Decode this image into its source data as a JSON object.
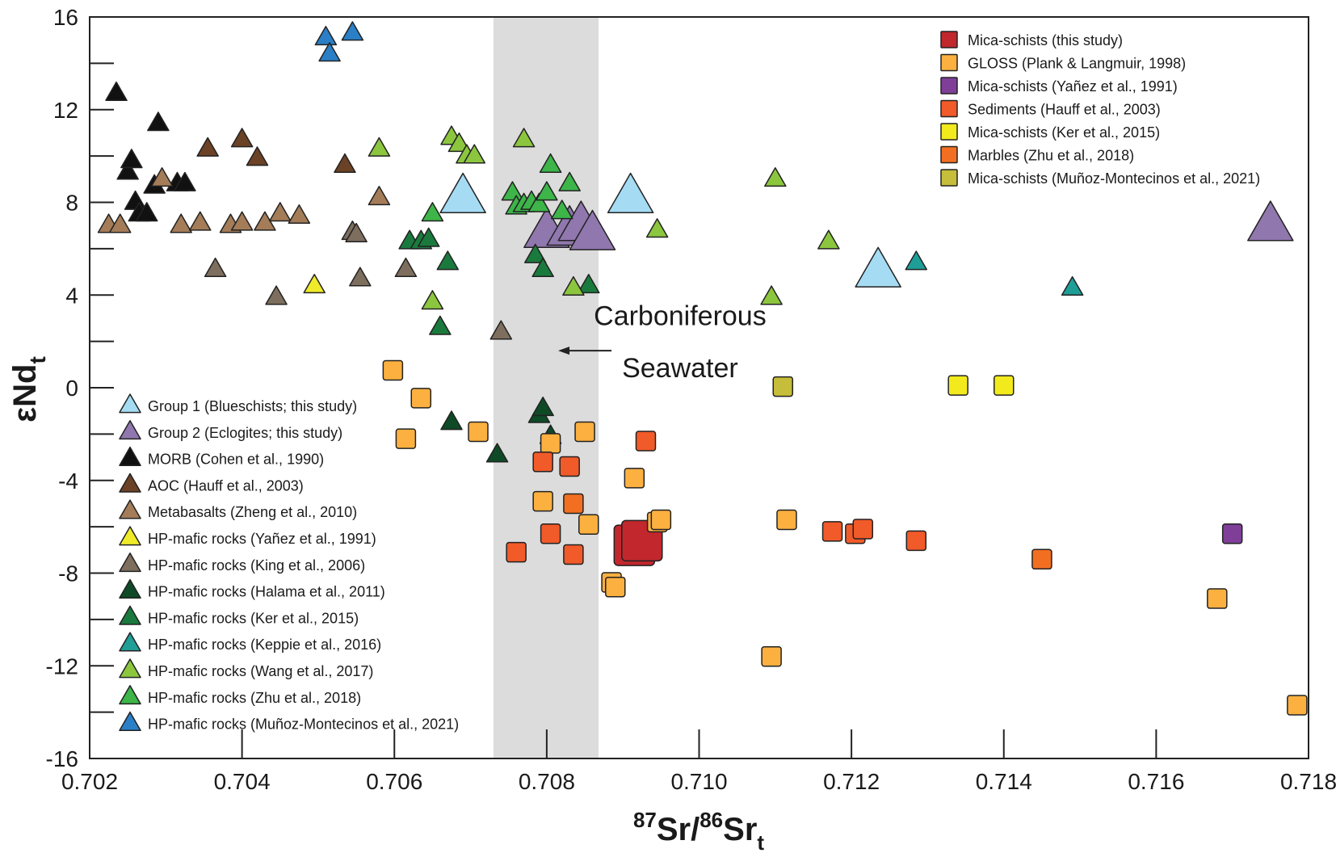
{
  "chart_data": {
    "type": "scatter",
    "xlim": [
      0.702,
      0.718
    ],
    "ylim": [
      -16,
      16
    ],
    "xticks": [
      0.702,
      0.704,
      0.706,
      0.708,
      0.71,
      0.712,
      0.714,
      0.716,
      0.718
    ],
    "xtick_labels": [
      "0.702",
      "0.704",
      "0.706",
      "0.708",
      "0.710",
      "0.712",
      "0.714",
      "0.716",
      "0.718"
    ],
    "yticks": [
      -16,
      -12,
      -8,
      -4,
      0,
      4,
      8,
      12,
      16
    ],
    "ytick_labels": [
      "-16",
      "-12",
      "-8",
      "-4",
      "0",
      "4",
      "8",
      "12",
      "16"
    ],
    "xlabel": {
      "sup1": "87",
      "base1": "Sr/",
      "sup2": "86",
      "base2": "Sr",
      "sub": "t"
    },
    "ylabel": {
      "base": "εNd",
      "sub": "t"
    },
    "band": {
      "x0": 0.7073,
      "x1": 0.70868,
      "label": "Carboniferous Seawater",
      "label_line1": "Carboniferous",
      "label_line2": "Seawater"
    },
    "legend_triangles": [
      {
        "label": "Group 1 (Blueschists; this study)",
        "color": "#a5dcf4"
      },
      {
        "label": "Group 2 (Eclogites; this study)",
        "color": "#9077ae"
      },
      {
        "label": "MORB (Cohen et al., 1990)",
        "color": "#111111"
      },
      {
        "label": "AOC (Hauff et al., 2003)",
        "color": "#6b4226"
      },
      {
        "label": "Metabasalts (Zheng et al., 2010)",
        "color": "#a47c58"
      },
      {
        "label": "HP-mafic rocks (Yañez et al., 1991)",
        "color": "#efea2a"
      },
      {
        "label": "HP-mafic rocks (King et al., 2006)",
        "color": "#7d6e5e"
      },
      {
        "label": "HP-mafic rocks (Halama et al., 2011)",
        "color": "#0e4a26"
      },
      {
        "label": "HP-mafic rocks (Ker et al., 2015)",
        "color": "#1a7a3d"
      },
      {
        "label": "HP-mafic rocks (Keppie et al., 2016)",
        "color": "#1e9e96"
      },
      {
        "label": "HP-mafic rocks (Wang et al., 2017)",
        "color": "#8cc63f"
      },
      {
        "label": "HP-mafic rocks (Zhu et al., 2018)",
        "color": "#3db549"
      },
      {
        "label": "HP-mafic rocks (Muñoz-Montecinos et al., 2021)",
        "color": "#2a7fc6"
      }
    ],
    "legend_squares": [
      {
        "label": "Mica-schists (this study)",
        "color": "#c1272d"
      },
      {
        "label": "GLOSS (Plank & Langmuir, 1998)",
        "color": "#fbb040"
      },
      {
        "label": "Mica-schists (Yañez et al., 1991)",
        "color": "#7f3f98"
      },
      {
        "label": "Sediments (Hauff et al., 2003)",
        "color": "#f15a29"
      },
      {
        "label": "Mica-schists (Ker et al., 2015)",
        "color": "#f2ea1d"
      },
      {
        "label": "Marbles (Zhu et al., 2018)",
        "color": "#f26f21"
      },
      {
        "label": "Mica-schists (Muñoz-Montecinos et al., 2021)",
        "color": "#c6bd3a"
      }
    ],
    "series": [
      {
        "name": "Group 1 (Blueschists; this study)",
        "marker": "triangle",
        "size": "large",
        "color": "#a5dcf4",
        "x": [
          0.7069,
          0.7091,
          0.71235
        ],
        "y": [
          8.2,
          8.2,
          5.0
        ]
      },
      {
        "name": "Group 2 (Eclogites; this study)",
        "marker": "triangle",
        "size": "large",
        "color": "#9077ae",
        "x": [
          0.708,
          0.7083,
          0.70845,
          0.7086,
          0.7175
        ],
        "y": [
          6.7,
          6.8,
          7.0,
          6.6,
          7.0
        ]
      },
      {
        "name": "MORB (Cohen et al., 1990)",
        "marker": "triangle",
        "size": "small",
        "color": "#111111",
        "x": [
          0.70235,
          0.7025,
          0.70255,
          0.7026,
          0.70265,
          0.70275,
          0.70285,
          0.7029,
          0.70315,
          0.70325
        ],
        "y": [
          12.7,
          9.3,
          9.8,
          8.0,
          7.5,
          7.5,
          8.7,
          11.4,
          8.8,
          8.8
        ]
      },
      {
        "name": "AOC (Hauff et al., 2003)",
        "marker": "triangle",
        "size": "small",
        "color": "#6b4226",
        "x": [
          0.70355,
          0.704,
          0.7042,
          0.70535
        ],
        "y": [
          10.3,
          10.7,
          9.9,
          9.6
        ]
      },
      {
        "name": "Metabasalts (Zheng et al., 2010)",
        "marker": "triangle",
        "size": "small",
        "color": "#a47c58",
        "x": [
          0.70225,
          0.7024,
          0.70295,
          0.7032,
          0.70345,
          0.70385,
          0.704,
          0.7043,
          0.7045,
          0.70475,
          0.7058
        ],
        "y": [
          7.0,
          7.0,
          9.0,
          7.0,
          7.1,
          7.0,
          7.1,
          7.1,
          7.5,
          7.4,
          8.2
        ]
      },
      {
        "name": "HP-mafic rocks (Yañez et al., 1991)",
        "marker": "triangle",
        "size": "small",
        "color": "#efea2a",
        "x": [
          0.70495
        ],
        "y": [
          4.4
        ]
      },
      {
        "name": "HP-mafic rocks (King et al., 2006)",
        "marker": "triangle",
        "size": "small",
        "color": "#7d6e5e",
        "x": [
          0.70365,
          0.70445,
          0.70545,
          0.7055,
          0.70555,
          0.70615,
          0.7074
        ],
        "y": [
          5.1,
          3.9,
          6.7,
          6.6,
          4.7,
          5.1,
          2.4
        ]
      },
      {
        "name": "HP-mafic rocks (Halama et al., 2011)",
        "marker": "triangle",
        "size": "small",
        "color": "#0e4a26",
        "x": [
          0.70675,
          0.70735,
          0.7079,
          0.70795,
          0.70805
        ],
        "y": [
          -1.5,
          -2.9,
          -1.2,
          -0.9,
          -2.1
        ]
      },
      {
        "name": "HP-mafic rocks (Ker et al., 2015)",
        "marker": "triangle",
        "size": "small",
        "color": "#1a7a3d",
        "x": [
          0.7062,
          0.70635,
          0.70645,
          0.7066,
          0.7067,
          0.70785,
          0.70795,
          0.70855
        ],
        "y": [
          6.3,
          6.3,
          6.4,
          2.6,
          5.4,
          5.7,
          5.1,
          4.4
        ]
      },
      {
        "name": "HP-mafic rocks (Keppie et al., 2016)",
        "marker": "triangle",
        "size": "small",
        "color": "#1e9e96",
        "x": [
          0.71285,
          0.7149
        ],
        "y": [
          5.4,
          4.3
        ]
      },
      {
        "name": "HP-mafic rocks (Wang et al., 2017)",
        "marker": "triangle",
        "size": "small",
        "color": "#8cc63f",
        "x": [
          0.7058,
          0.7065,
          0.70675,
          0.70685,
          0.70695,
          0.70705,
          0.7077,
          0.70835,
          0.70945,
          0.71095,
          0.711,
          0.7117
        ],
        "y": [
          10.3,
          3.7,
          10.8,
          10.5,
          10.0,
          10.0,
          10.7,
          4.3,
          6.8,
          3.9,
          9.0,
          6.3
        ]
      },
      {
        "name": "HP-mafic rocks (Zhu et al., 2018)",
        "marker": "triangle",
        "size": "small",
        "color": "#3db549",
        "x": [
          0.7065,
          0.70755,
          0.7076,
          0.7077,
          0.7078,
          0.7079,
          0.708,
          0.70805,
          0.7082,
          0.7083
        ],
        "y": [
          7.5,
          8.4,
          7.8,
          7.9,
          8.0,
          7.9,
          8.4,
          9.6,
          7.6,
          8.8
        ]
      },
      {
        "name": "HP-mafic rocks (Muñoz-Montecinos et al., 2021)",
        "marker": "triangle",
        "size": "small",
        "color": "#2a7fc6",
        "x": [
          0.7051,
          0.70515,
          0.70545
        ],
        "y": [
          15.1,
          14.4,
          15.3
        ]
      },
      {
        "name": "Mica-schists (this study)",
        "marker": "square",
        "size": "large",
        "color": "#c1272d",
        "x": [
          0.70915,
          0.70925
        ],
        "y": [
          -6.8,
          -6.6
        ]
      },
      {
        "name": "GLOSS (Plank & Langmuir, 1998)",
        "marker": "square",
        "size": "small",
        "color": "#fbb040",
        "x": [
          0.70598,
          0.70615,
          0.70635,
          0.7071,
          0.70795,
          0.70805,
          0.7085,
          0.70855,
          0.70885,
          0.7089,
          0.70915,
          0.70945,
          0.7095,
          0.71095,
          0.71115,
          0.7168,
          0.71785
        ],
        "y": [
          0.75,
          -2.2,
          -0.45,
          -1.9,
          -4.9,
          -2.4,
          -1.9,
          -5.9,
          -8.4,
          -8.6,
          -3.9,
          -5.8,
          -5.7,
          -11.6,
          -5.7,
          -9.1,
          -13.7
        ]
      },
      {
        "name": "Mica-schists (Yañez et al., 1991)",
        "marker": "square",
        "size": "small",
        "color": "#7f3f98",
        "x": [
          0.717
        ],
        "y": [
          -6.3
        ]
      },
      {
        "name": "Sediments (Hauff et al., 2003)",
        "marker": "square",
        "size": "small",
        "color": "#f15a29",
        "x": [
          0.7076,
          0.70795,
          0.70805,
          0.7083,
          0.70835,
          0.7093,
          0.71175,
          0.71205,
          0.71215,
          0.71285
        ],
        "y": [
          -7.1,
          -3.2,
          -6.3,
          -3.4,
          -7.2,
          -2.3,
          -6.2,
          -6.3,
          -6.1,
          -6.6
        ]
      },
      {
        "name": "Mica-schists (Ker et al., 2015)",
        "marker": "square",
        "size": "small",
        "color": "#f2ea1d",
        "x": [
          0.7134,
          0.714
        ],
        "y": [
          0.1,
          0.1
        ]
      },
      {
        "name": "Marbles (Zhu et al., 2018)",
        "marker": "square",
        "size": "small",
        "color": "#f26f21",
        "x": [
          0.70835,
          0.7145
        ],
        "y": [
          -5.0,
          -7.4
        ]
      },
      {
        "name": "Mica-schists (Muñoz-Montecinos et al., 2021)",
        "marker": "square",
        "size": "small",
        "color": "#c6bd3a",
        "x": [
          0.7111
        ],
        "y": [
          0.05
        ]
      }
    ]
  }
}
